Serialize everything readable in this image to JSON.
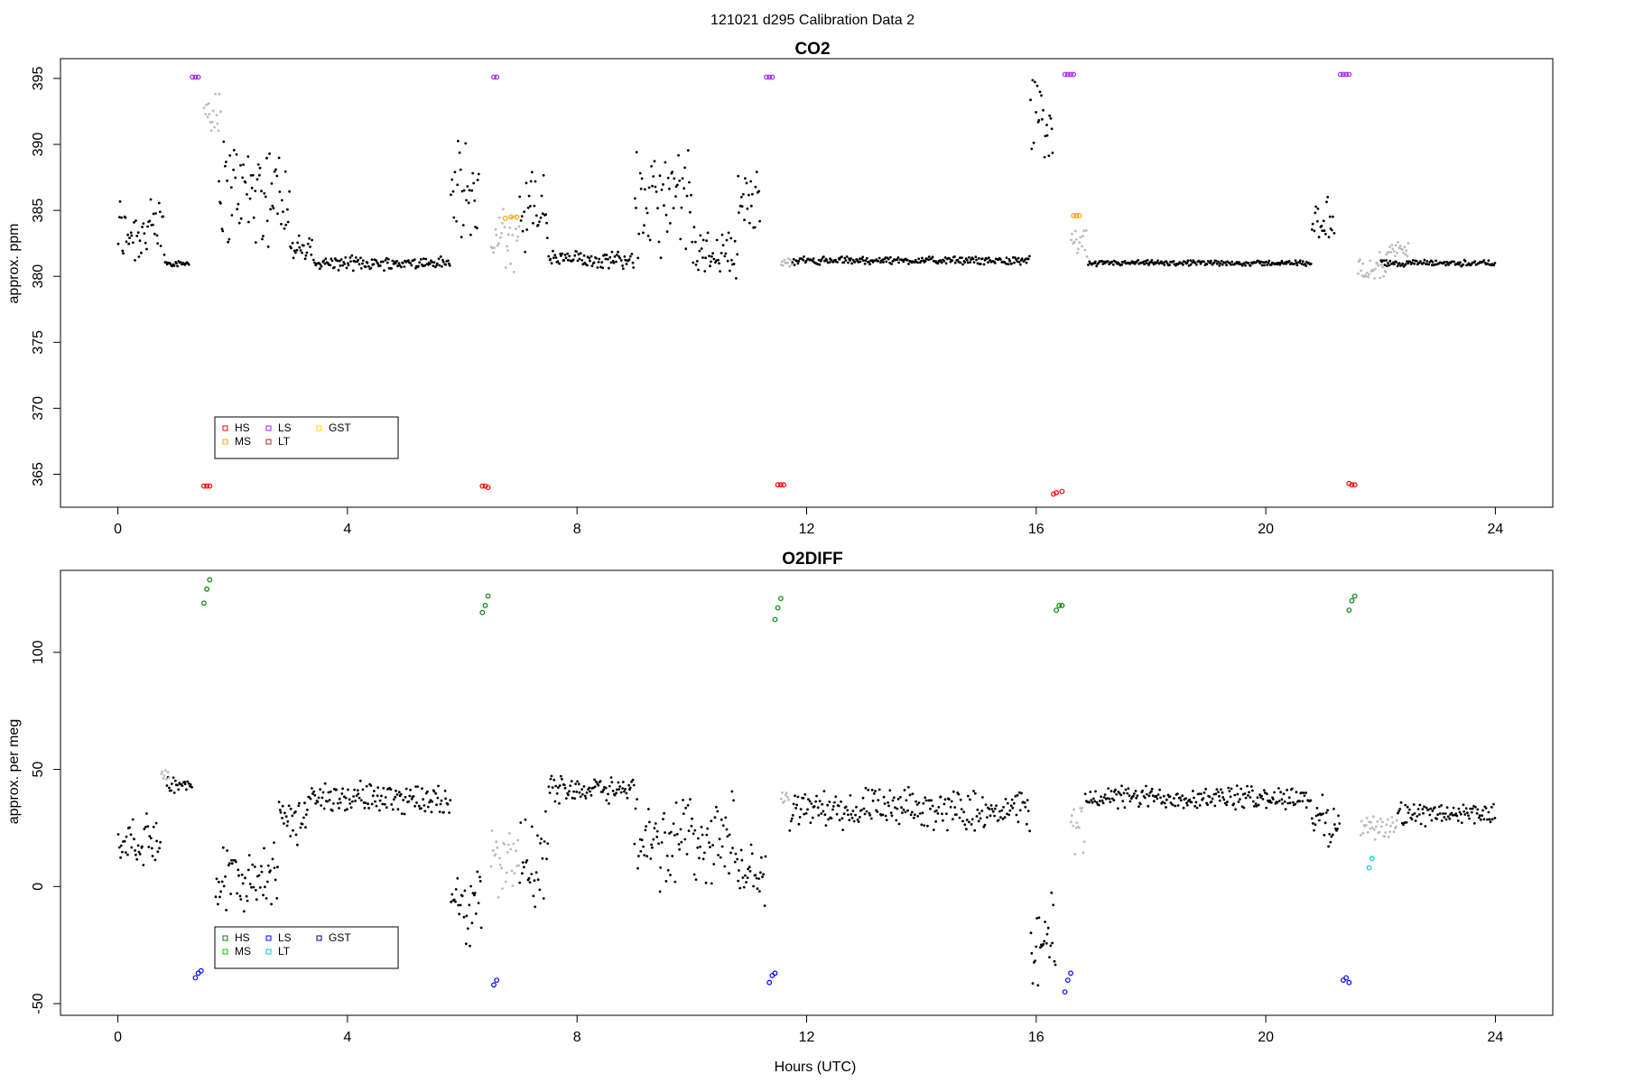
{
  "figure_title": "121021   d295   Calibration Data 2",
  "x_axis_label": "Hours (UTC)",
  "chart_data": [
    {
      "type": "scatter",
      "title": "CO2",
      "xlabel": "",
      "ylabel": "approx. ppm",
      "xlim": [
        -1,
        25
      ],
      "ylim": [
        362.5,
        396.5
      ],
      "xticks": [
        0,
        4,
        8,
        12,
        16,
        20,
        24
      ],
      "yticks": [
        365,
        370,
        375,
        380,
        385,
        390,
        395
      ],
      "legend": {
        "placement": "bottom-left",
        "entries": [
          {
            "label": "HS",
            "color": "#ff0000"
          },
          {
            "label": "MS",
            "color": "#ffa500"
          },
          {
            "label": "LS",
            "color": "#a020f0"
          },
          {
            "label": "LT",
            "color": "#a52a2a"
          },
          {
            "label": "GST",
            "color": "#ffd700"
          }
        ]
      },
      "background_series": [
        {
          "color": "#000000",
          "segments": [
            {
              "x": [
                0.0,
                0.82
              ],
              "base": 383.5,
              "spread": 3.5
            },
            {
              "x": [
                0.82,
                1.25
              ],
              "base": 381.0,
              "spread": 0.3
            },
            {
              "x": [
                1.75,
                3.0
              ],
              "base": 386.5,
              "spread": 5.0
            },
            {
              "x": [
                3.0,
                3.4
              ],
              "base": 382.0,
              "spread": 1.2
            },
            {
              "x": [
                3.4,
                5.8
              ],
              "base": 381.0,
              "spread": 0.6
            },
            {
              "x": [
                5.8,
                6.3
              ],
              "base": 386.0,
              "spread": 5.0
            },
            {
              "x": [
                7.0,
                7.5
              ],
              "base": 385.0,
              "spread": 4.5
            },
            {
              "x": [
                7.5,
                9.0
              ],
              "base": 381.3,
              "spread": 0.8
            },
            {
              "x": [
                9.0,
                10.0
              ],
              "base": 385.5,
              "spread": 5.0
            },
            {
              "x": [
                10.0,
                10.8
              ],
              "base": 382.0,
              "spread": 2.5
            },
            {
              "x": [
                10.8,
                11.2
              ],
              "base": 385.5,
              "spread": 3.0
            },
            {
              "x": [
                11.75,
                15.9
              ],
              "base": 381.2,
              "spread": 0.35
            },
            {
              "x": [
                15.9,
                16.3
              ],
              "base": 391.5,
              "spread": 4.5
            },
            {
              "x": [
                16.9,
                20.8
              ],
              "base": 381.0,
              "spread": 0.25
            },
            {
              "x": [
                20.8,
                21.2
              ],
              "base": 384.5,
              "spread": 2.5
            },
            {
              "x": [
                22.0,
                24.0
              ],
              "base": 381.0,
              "spread": 0.3
            }
          ]
        },
        {
          "color": "#bbbbbb",
          "segments": [
            {
              "x": [
                1.5,
                1.8
              ],
              "base": 392.0,
              "spread": 2.0
            },
            {
              "x": [
                6.5,
                7.0
              ],
              "base": 383.0,
              "spread": 3.0
            },
            {
              "x": [
                11.55,
                11.75
              ],
              "base": 381.0,
              "spread": 0.5
            },
            {
              "x": [
                16.6,
                16.9
              ],
              "base": 382.5,
              "spread": 1.5
            },
            {
              "x": [
                21.6,
                22.1
              ],
              "base": 380.8,
              "spread": 1.2
            },
            {
              "x": [
                22.1,
                22.5
              ],
              "base": 382.0,
              "spread": 1.0
            }
          ]
        }
      ],
      "series": [
        {
          "name": "HS",
          "color": "#ff0000",
          "x": [
            1.5,
            1.55,
            1.6,
            6.35,
            6.4,
            6.45,
            11.5,
            11.55,
            11.6,
            16.3,
            16.35,
            16.45,
            21.45,
            21.5,
            21.55
          ],
          "y": [
            364.1,
            364.1,
            364.1,
            364.1,
            364.1,
            364.0,
            364.2,
            364.2,
            364.2,
            363.5,
            363.6,
            363.7,
            364.3,
            364.2,
            364.2
          ]
        },
        {
          "name": "MS",
          "color": "#ffa500",
          "x": [
            6.75,
            6.85,
            6.95,
            16.65,
            16.7,
            16.75
          ],
          "y": [
            384.4,
            384.5,
            384.5,
            384.6,
            384.6,
            384.6
          ]
        },
        {
          "name": "LS",
          "color": "#a020f0",
          "x": [
            1.3,
            1.35,
            1.4,
            6.55,
            6.6,
            11.3,
            11.35,
            11.4,
            16.5,
            16.55,
            16.6,
            16.65,
            21.3,
            21.35,
            21.4,
            21.45
          ],
          "y": [
            395.1,
            395.1,
            395.1,
            395.1,
            395.1,
            395.1,
            395.1,
            395.1,
            395.3,
            395.3,
            395.3,
            395.3,
            395.3,
            395.3,
            395.3,
            395.3
          ]
        }
      ]
    },
    {
      "type": "scatter",
      "title": "O2DIFF",
      "xlabel": "Hours (UTC)",
      "ylabel": "approx. per meg",
      "xlim": [
        -1,
        25
      ],
      "ylim": [
        -55,
        135
      ],
      "xticks": [
        0,
        4,
        8,
        12,
        16,
        20,
        24
      ],
      "yticks": [
        -50,
        0,
        50,
        100
      ],
      "legend": {
        "placement": "bottom-left",
        "entries": [
          {
            "label": "HS",
            "color": "#008000"
          },
          {
            "label": "MS",
            "color": "#00cc00"
          },
          {
            "label": "LS",
            "color": "#0000ff"
          },
          {
            "label": "LT",
            "color": "#00cccc"
          },
          {
            "label": "GST",
            "color": "#00008b"
          }
        ]
      },
      "background_series": [
        {
          "color": "#000000",
          "segments": [
            {
              "x": [
                0.0,
                0.75
              ],
              "base": 20,
              "spread": 12
            },
            {
              "x": [
                0.85,
                1.3
              ],
              "base": 43,
              "spread": 5
            },
            {
              "x": [
                1.7,
                2.8
              ],
              "base": 5,
              "spread": 18
            },
            {
              "x": [
                2.8,
                3.3
              ],
              "base": 28,
              "spread": 12
            },
            {
              "x": [
                3.3,
                5.8
              ],
              "base": 38,
              "spread": 8
            },
            {
              "x": [
                5.8,
                6.35
              ],
              "base": -10,
              "spread": 20
            },
            {
              "x": [
                7.0,
                7.5
              ],
              "base": 10,
              "spread": 25
            },
            {
              "x": [
                7.5,
                9.0
              ],
              "base": 42,
              "spread": 7
            },
            {
              "x": [
                9.0,
                10.8
              ],
              "base": 20,
              "spread": 25
            },
            {
              "x": [
                10.8,
                11.3
              ],
              "base": 5,
              "spread": 15
            },
            {
              "x": [
                11.7,
                15.9
              ],
              "base": 33,
              "spread": 10
            },
            {
              "x": [
                15.9,
                16.35
              ],
              "base": -25,
              "spread": 25
            },
            {
              "x": [
                16.85,
                20.8
              ],
              "base": 38,
              "spread": 6
            },
            {
              "x": [
                20.8,
                21.3
              ],
              "base": 28,
              "spread": 12
            },
            {
              "x": [
                22.3,
                24.0
              ],
              "base": 31,
              "spread": 6
            }
          ]
        },
        {
          "color": "#bbbbbb",
          "segments": [
            {
              "x": [
                0.75,
                0.9
              ],
              "base": 47,
              "spread": 4
            },
            {
              "x": [
                6.5,
                7.0
              ],
              "base": 10,
              "spread": 18
            },
            {
              "x": [
                11.55,
                11.7
              ],
              "base": 38,
              "spread": 5
            },
            {
              "x": [
                16.6,
                16.85
              ],
              "base": 25,
              "spread": 12
            },
            {
              "x": [
                21.65,
                22.3
              ],
              "base": 25,
              "spread": 6
            }
          ]
        }
      ],
      "series": [
        {
          "name": "HS",
          "color": "#008000",
          "x": [
            1.5,
            1.55,
            1.6,
            6.35,
            6.4,
            6.45,
            11.45,
            11.5,
            11.55,
            16.35,
            16.4,
            16.45,
            21.45,
            21.5,
            21.55
          ],
          "y": [
            121,
            127,
            131,
            117,
            120,
            124,
            114,
            119,
            123,
            118,
            120,
            120,
            118,
            122,
            124
          ]
        },
        {
          "name": "LS",
          "color": "#0000ff",
          "x": [
            1.35,
            1.4,
            1.45,
            6.55,
            6.6,
            11.35,
            11.4,
            11.45,
            16.5,
            16.55,
            16.6,
            21.35,
            21.4,
            21.45
          ],
          "y": [
            -39,
            -37,
            -36,
            -42,
            -40,
            -41,
            -38,
            -37,
            -45,
            -40,
            -37,
            -40,
            -39,
            -41
          ]
        },
        {
          "name": "LT",
          "color": "#00cccc",
          "x": [
            21.8,
            21.85
          ],
          "y": [
            8,
            12
          ]
        }
      ]
    }
  ]
}
